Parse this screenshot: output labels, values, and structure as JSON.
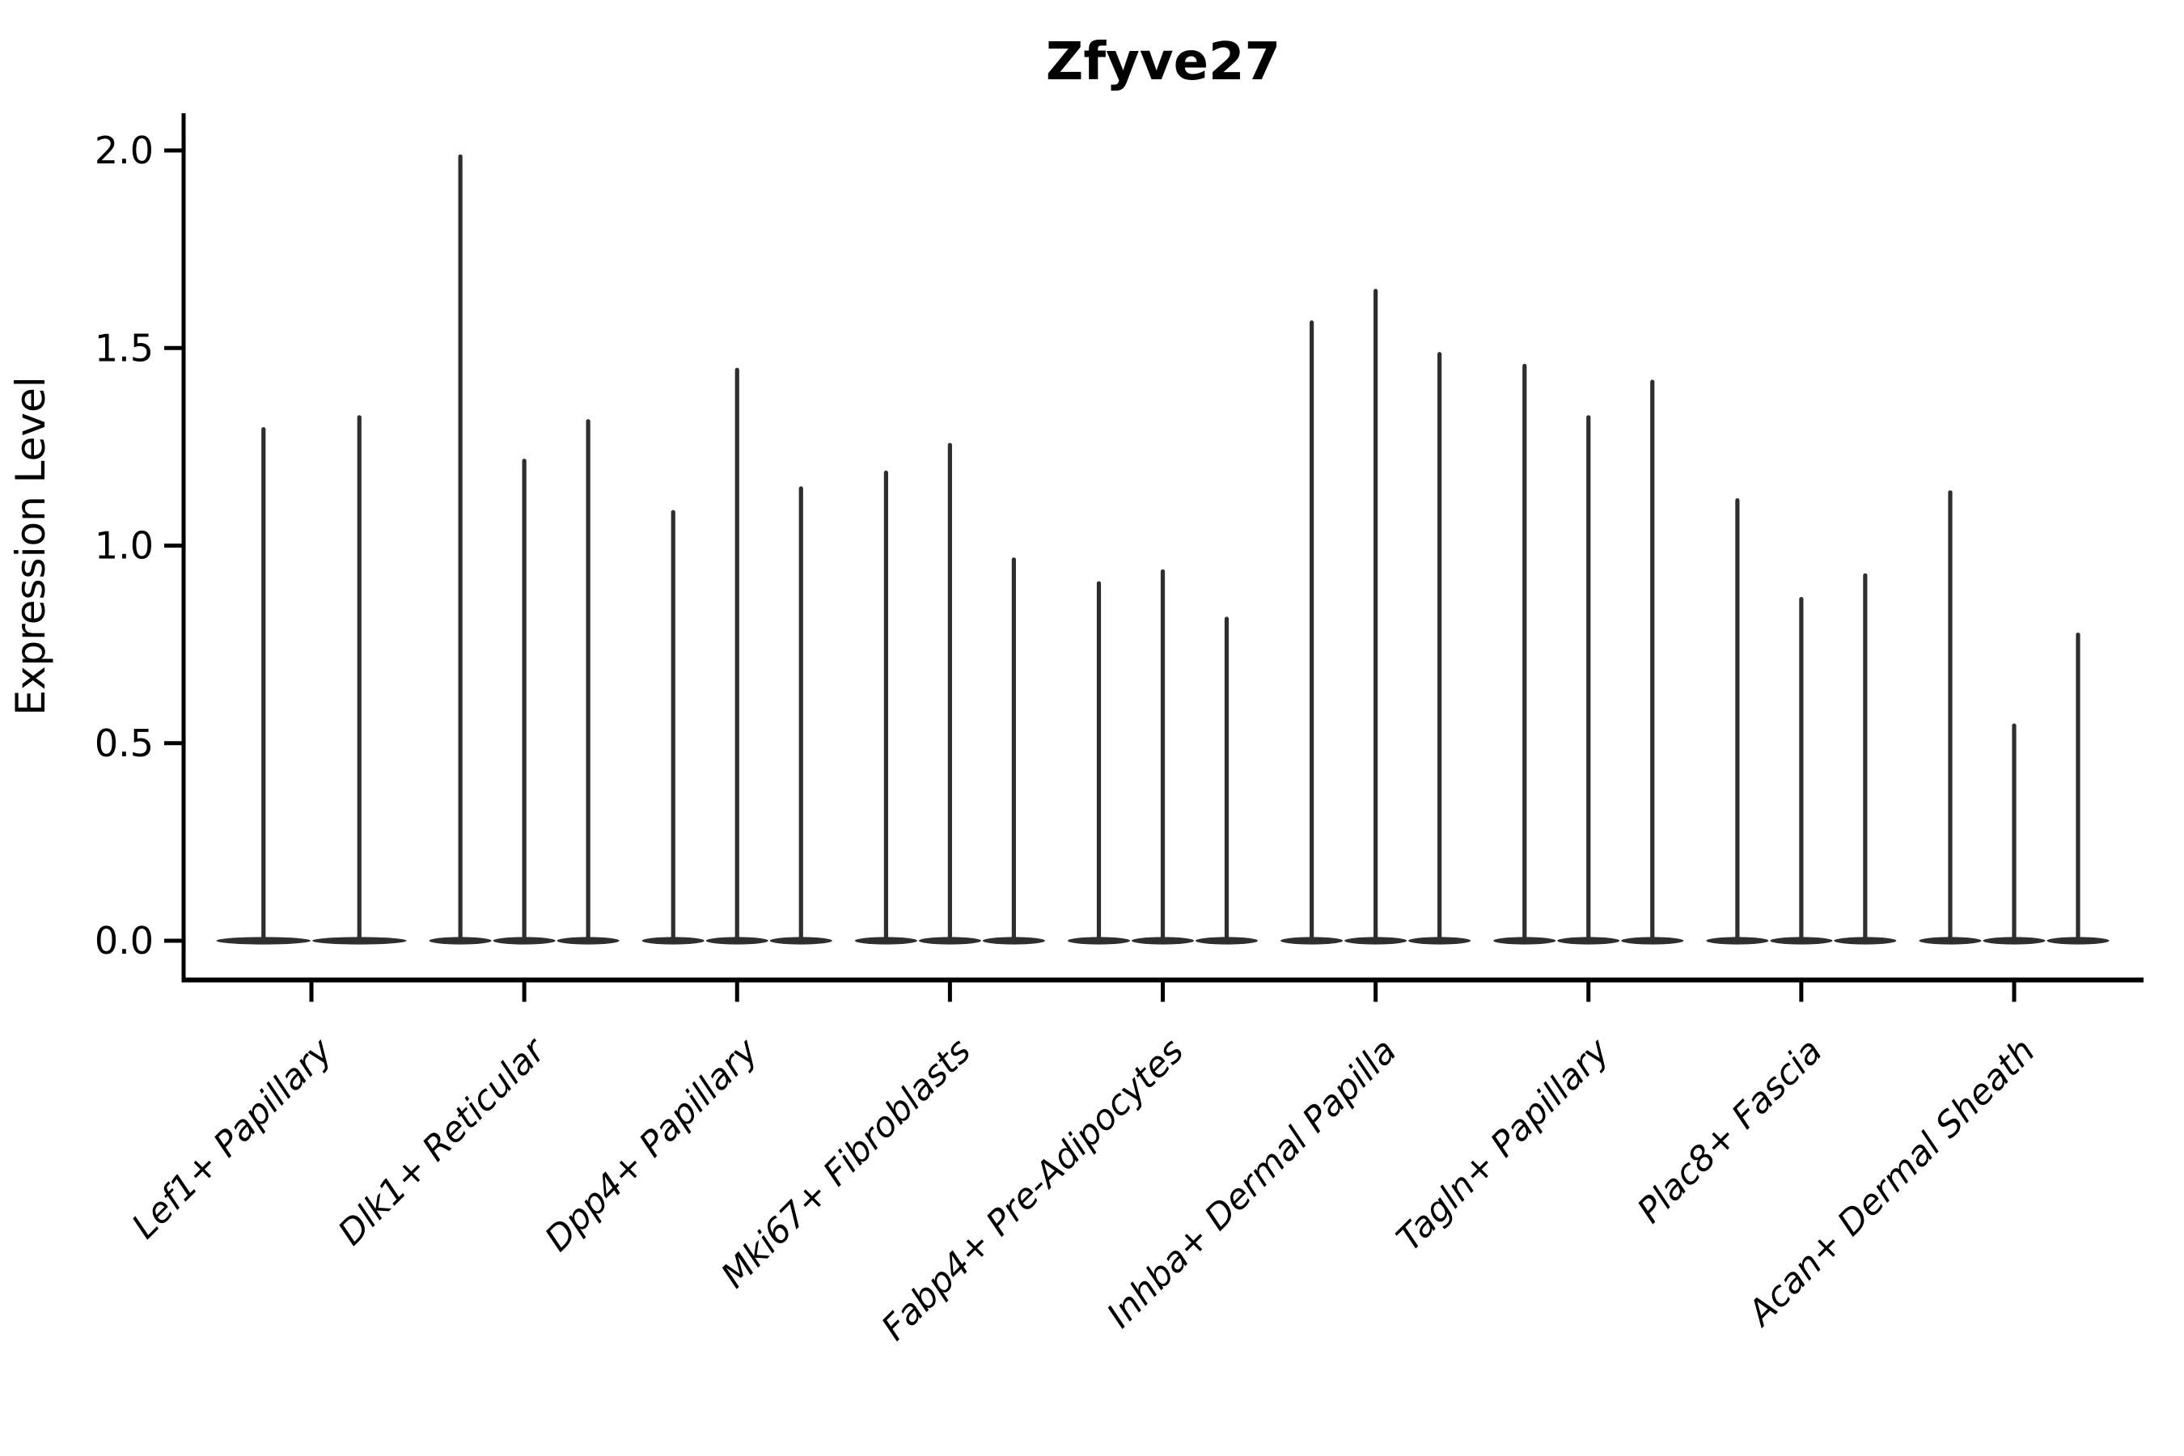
{
  "figure": {
    "title": "Zfyve27",
    "y_axis_label": "Expression Level"
  },
  "chart_data": {
    "type": "violin",
    "title": "Zfyve27",
    "xlabel": "",
    "ylabel": "Expression Level",
    "ylim": [
      -0.1,
      2.09
    ],
    "yticks": [
      "0.0",
      "0.5",
      "1.0",
      "1.5",
      "2.0"
    ],
    "grid": false,
    "legend": "none",
    "x_tick_label_rotation_deg": 45,
    "categories": [
      "Lef1+ Papillary",
      "Dlk1+ Reticular",
      "Dpp4+ Papillary",
      "Mki67+ Fibroblasts",
      "Fabp4+ Pre-Adipocytes",
      "Inhba+ Dermal Papilla",
      "Tagln+ Papillary",
      "Plac8+ Fascia",
      "Acan+ Dermal Sheath"
    ],
    "series": [
      {
        "category": "Lef1+ Papillary",
        "violin_peak_expression": [
          1.3,
          1.33
        ]
      },
      {
        "category": "Dlk1+ Reticular",
        "violin_peak_expression": [
          1.99,
          1.22,
          1.32
        ]
      },
      {
        "category": "Dpp4+ Papillary",
        "violin_peak_expression": [
          1.09,
          1.45,
          1.15
        ]
      },
      {
        "category": "Mki67+ Fibroblasts",
        "violin_peak_expression": [
          1.19,
          1.26,
          0.97
        ]
      },
      {
        "category": "Fabp4+ Pre-Adipocytes",
        "violin_peak_expression": [
          0.91,
          0.94,
          0.82
        ]
      },
      {
        "category": "Inhba+ Dermal Papilla",
        "violin_peak_expression": [
          1.57,
          1.65,
          1.49
        ]
      },
      {
        "category": "Tagln+ Papillary",
        "violin_peak_expression": [
          1.46,
          1.33,
          1.42
        ]
      },
      {
        "category": "Plac8+ Fascia",
        "violin_peak_expression": [
          1.12,
          0.87,
          0.93
        ]
      },
      {
        "category": "Acan+ Dermal Sheath",
        "violin_peak_expression": [
          1.14,
          0.55,
          0.78
        ]
      }
    ],
    "violin_baseline_value": 0.0
  },
  "colors": {
    "violin_fill": "#2e2e2e",
    "axis": "#000000",
    "background": "#ffffff"
  }
}
